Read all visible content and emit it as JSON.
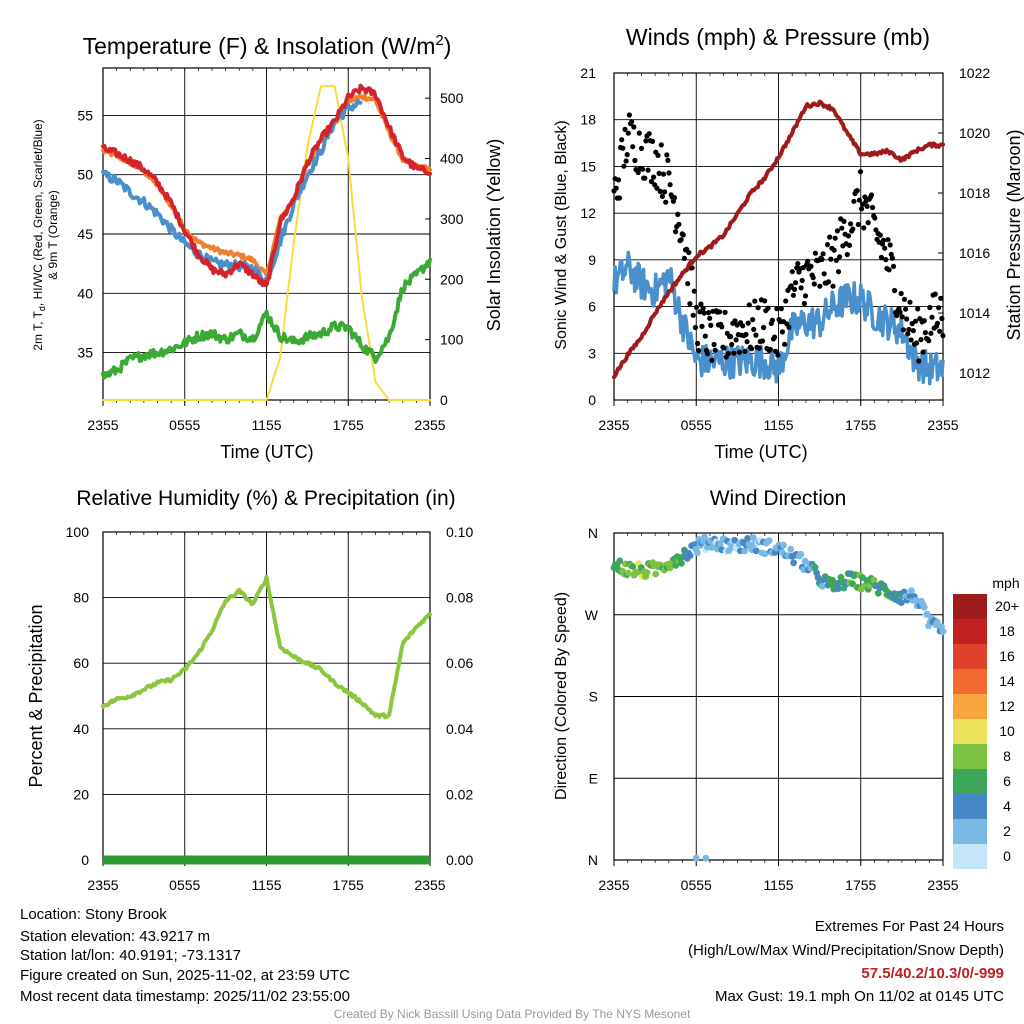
{
  "chart_data": [
    {
      "type": "line",
      "title": "Temperature (F) & Insolation (W/m²)",
      "title_main": "Temperature (F) & Insolation (W/m",
      "title_sup": "2",
      "title_end": ")",
      "xlabel": "Time (UTC)",
      "ylabel": "2m T, Td, HI/WC (Red, Green, Scarlet/Blue) & 9m T (Orange)",
      "ylabel_l1a": "2m T, T",
      "ylabel_l1sub": "d",
      "ylabel_l1b": ", HI/WC (Red, Green, Scarlet/Blue)",
      "ylabel_l2": "& 9m T (Orange)",
      "y2label": "Solar Insolation (Yellow)",
      "ylim": [
        31,
        59
      ],
      "y2lim": [
        0,
        550
      ],
      "yticks": [
        "35",
        "40",
        "45",
        "50",
        "55"
      ],
      "y2ticks": [
        "0",
        "100",
        "200",
        "300",
        "400",
        "500"
      ],
      "xticks": [
        "2355",
        "0555",
        "1155",
        "1755",
        "2355"
      ],
      "x": [
        0,
        1,
        2,
        3,
        4,
        5,
        6,
        7,
        8,
        9,
        10,
        11,
        12,
        13,
        14,
        15,
        16,
        17,
        18,
        19,
        20,
        21,
        22,
        23,
        24
      ],
      "series": [
        {
          "name": "2m T",
          "color": "#d6222a",
          "values": [
            52.2,
            51.8,
            51.2,
            50.5,
            49.3,
            47.6,
            45.3,
            43.3,
            42.0,
            41.6,
            42.5,
            41.6,
            40.5,
            46.0,
            48.0,
            51.0,
            53.0,
            54.5,
            56.5,
            57.3,
            56.8,
            54.0,
            51.5,
            50.5,
            50.3
          ]
        },
        {
          "name": "9m T",
          "color": "#f07f2e",
          "values": [
            52.0,
            51.6,
            51.0,
            50.3,
            49.1,
            47.4,
            45.4,
            44.3,
            43.8,
            43.4,
            43.2,
            42.8,
            41.5,
            46.2,
            48.0,
            50.8,
            53.0,
            54.3,
            56.2,
            56.6,
            56.3,
            53.6,
            51.3,
            50.7,
            50.5
          ]
        },
        {
          "name": "HI/WC",
          "color": "#4a90cc",
          "values": [
            50.0,
            49.5,
            48.5,
            47.7,
            46.7,
            45.4,
            44.2,
            43.3,
            42.6,
            42.4,
            42.3,
            42.1,
            41.0,
            44.4,
            47.5,
            50.0,
            52.0,
            54.5,
            55.6,
            56.2,
            null,
            null,
            null,
            null,
            null
          ]
        },
        {
          "name": "Td",
          "color": "#3aaa35",
          "values": [
            33.0,
            33.5,
            34.4,
            34.8,
            35.0,
            35.3,
            35.8,
            36.4,
            36.6,
            36.1,
            36.6,
            36.2,
            38.3,
            36.4,
            35.9,
            36.3,
            36.6,
            37.2,
            37.1,
            35.6,
            34.6,
            36.3,
            40.5,
            41.5,
            42.8
          ]
        },
        {
          "name": "Solar Insolation",
          "color": "#f5dc3c",
          "axis": "y2",
          "values": [
            0,
            0,
            0,
            0,
            0,
            0,
            0,
            0,
            0,
            0,
            0,
            0,
            0,
            70,
            260,
            420,
            520,
            520,
            400,
            170,
            30,
            0,
            0,
            0,
            0
          ]
        }
      ]
    },
    {
      "type": "line",
      "title": "Winds (mph) & Pressure (mb)",
      "xlabel": "Time (UTC)",
      "ylabel": "Sonic Wind & Gust (Blue, Black)",
      "y2label": "Station Pressure (Maroon)",
      "ylim": [
        0,
        21
      ],
      "y2lim": [
        1011.1,
        1022
      ],
      "yticks": [
        "0",
        "3",
        "6",
        "9",
        "12",
        "15",
        "18",
        "21"
      ],
      "y2ticks": [
        "1012",
        "1014",
        "1016",
        "1018",
        "1020",
        "1022"
      ],
      "xticks": [
        "2355",
        "0555",
        "1155",
        "1755",
        "2355"
      ],
      "x": [
        0,
        1,
        2,
        3,
        4,
        5,
        6,
        7,
        8,
        9,
        10,
        11,
        12,
        13,
        14,
        15,
        16,
        17,
        18,
        19,
        20,
        21,
        22,
        23,
        24
      ],
      "series": [
        {
          "name": "Sonic Wind",
          "color": "#4a90cc",
          "values": [
            7.5,
            8.5,
            7.5,
            7.0,
            8.0,
            5.0,
            2.5,
            2.5,
            2.5,
            2.5,
            2.5,
            2.5,
            2.0,
            4.5,
            5.0,
            5.0,
            6.0,
            6.5,
            6.5,
            5.5,
            5.0,
            4.5,
            2.5,
            2.0,
            2.0
          ]
        },
        {
          "name": "Gust",
          "color": "#000000",
          "values": [
            13.0,
            17.0,
            16.0,
            15.5,
            14.0,
            11.0,
            5.0,
            4.0,
            4.0,
            4.5,
            4.5,
            5.0,
            4.0,
            7.0,
            8.0,
            8.0,
            9.0,
            11.0,
            13.0,
            11.0,
            9.0,
            6.0,
            4.0,
            5.0,
            5.5
          ]
        },
        {
          "name": "Station Pressure",
          "color": "#9e1b1b",
          "axis": "y2",
          "values": [
            1011.9,
            1012.6,
            1013.2,
            1014.0,
            1014.7,
            1015.3,
            1015.9,
            1016.2,
            1016.6,
            1017.3,
            1018.0,
            1018.5,
            1019.2,
            1020.0,
            1020.9,
            1021.0,
            1020.8,
            1020.0,
            1019.3,
            1019.3,
            1019.4,
            1019.1,
            1019.4,
            1019.6,
            1019.6
          ]
        }
      ]
    },
    {
      "type": "line",
      "title": "Relative Humidity (%) & Precipitation (in)",
      "ylabel": "Percent & Precipitation",
      "ylim": [
        0,
        100
      ],
      "y2lim": [
        0,
        0.1
      ],
      "yticks": [
        "0",
        "20",
        "40",
        "60",
        "80",
        "100"
      ],
      "y2ticks": [
        "0.00",
        "0.02",
        "0.04",
        "0.06",
        "0.08",
        "0.10"
      ],
      "xticks": [
        "2355",
        "0555",
        "1155",
        "1755",
        "2355"
      ],
      "x": [
        0,
        1,
        2,
        3,
        4,
        5,
        6,
        7,
        8,
        9,
        10,
        11,
        12,
        13,
        14,
        15,
        16,
        17,
        18,
        19,
        20,
        21,
        22,
        23,
        24
      ],
      "series": [
        {
          "name": "Relative Humidity",
          "color": "#8cc63f",
          "values": [
            47,
            49,
            50,
            52,
            54,
            55,
            58,
            63,
            70,
            79,
            82,
            78,
            86,
            65,
            62,
            60,
            58,
            54,
            51,
            48,
            44,
            44,
            66,
            71,
            75
          ]
        },
        {
          "name": "Precipitation",
          "color": "#2d9b2d",
          "values": [
            0,
            0,
            0,
            0,
            0,
            0,
            0,
            0,
            0,
            0,
            0,
            0,
            0,
            0,
            0,
            0,
            0,
            0,
            0,
            0,
            0,
            0,
            0,
            0,
            0
          ]
        }
      ]
    },
    {
      "type": "scatter",
      "title": "Wind Direction",
      "ylabel": "Direction (Colored By Speed)",
      "yticks": [
        "N",
        "E",
        "S",
        "W",
        "N"
      ],
      "ylim": [
        0,
        360
      ],
      "xticks": [
        "2355",
        "0555",
        "1155",
        "1755",
        "2355"
      ],
      "x": [
        0,
        1,
        2,
        3,
        4,
        5,
        6,
        7,
        8,
        9,
        10,
        11,
        12,
        13,
        14,
        15,
        16,
        17,
        18,
        19,
        20,
        21,
        22,
        23,
        24
      ],
      "series": [
        {
          "name": "Direction (deg)",
          "values": [
            325,
            320,
            318,
            320,
            328,
            335,
            345,
            350,
            348,
            346,
            348,
            345,
            343,
            335,
            325,
            310,
            300,
            308,
            306,
            302,
            296,
            290,
            290,
            260,
            250
          ]
        },
        {
          "name": "Speed (mph)",
          "values": [
            7,
            8,
            8,
            7,
            8,
            5,
            2,
            2,
            2,
            2,
            2,
            2,
            2,
            4,
            4,
            4,
            5,
            6,
            7,
            6,
            5,
            4,
            2,
            2,
            2
          ]
        }
      ],
      "outliers": [
        {
          "x": 6.0,
          "dir": 2
        },
        {
          "x": 6.7,
          "dir": 2
        }
      ],
      "colorbar": {
        "unit": "mph",
        "labels": [
          "20+",
          "18",
          "16",
          "14",
          "12",
          "10",
          "8",
          "6",
          "4",
          "2",
          "0"
        ],
        "colors": [
          "#9e1b1b",
          "#c0201f",
          "#e0412c",
          "#f26a2d",
          "#f9a43c",
          "#ece15a",
          "#7dc242",
          "#3ca65a",
          "#4687c5",
          "#7bb9e4",
          "#c4e6f8"
        ]
      }
    }
  ],
  "footer": {
    "location": "Location: Stony Brook",
    "elevation": "Station elevation: 43.9217 m",
    "latlon": "Station lat/lon: 40.9191; -73.1317",
    "created": "Figure created on Sun, 2025-11-02, at 23:59 UTC",
    "recent": "Most recent data timestamp: 2025/11/02 23:55:00",
    "extremes_title": "Extremes For Past 24 Hours",
    "extremes_legend": "(High/Low/Max Wind/Precipitation/Snow Depth)",
    "extremes_values": "57.5/40.2/10.3/0/-999",
    "max_gust": "Max Gust: 19.1 mph On 11/02 at 0145 UTC",
    "credit": "Created By Nick Bassill Using Data Provided By The NYS Mesonet"
  }
}
